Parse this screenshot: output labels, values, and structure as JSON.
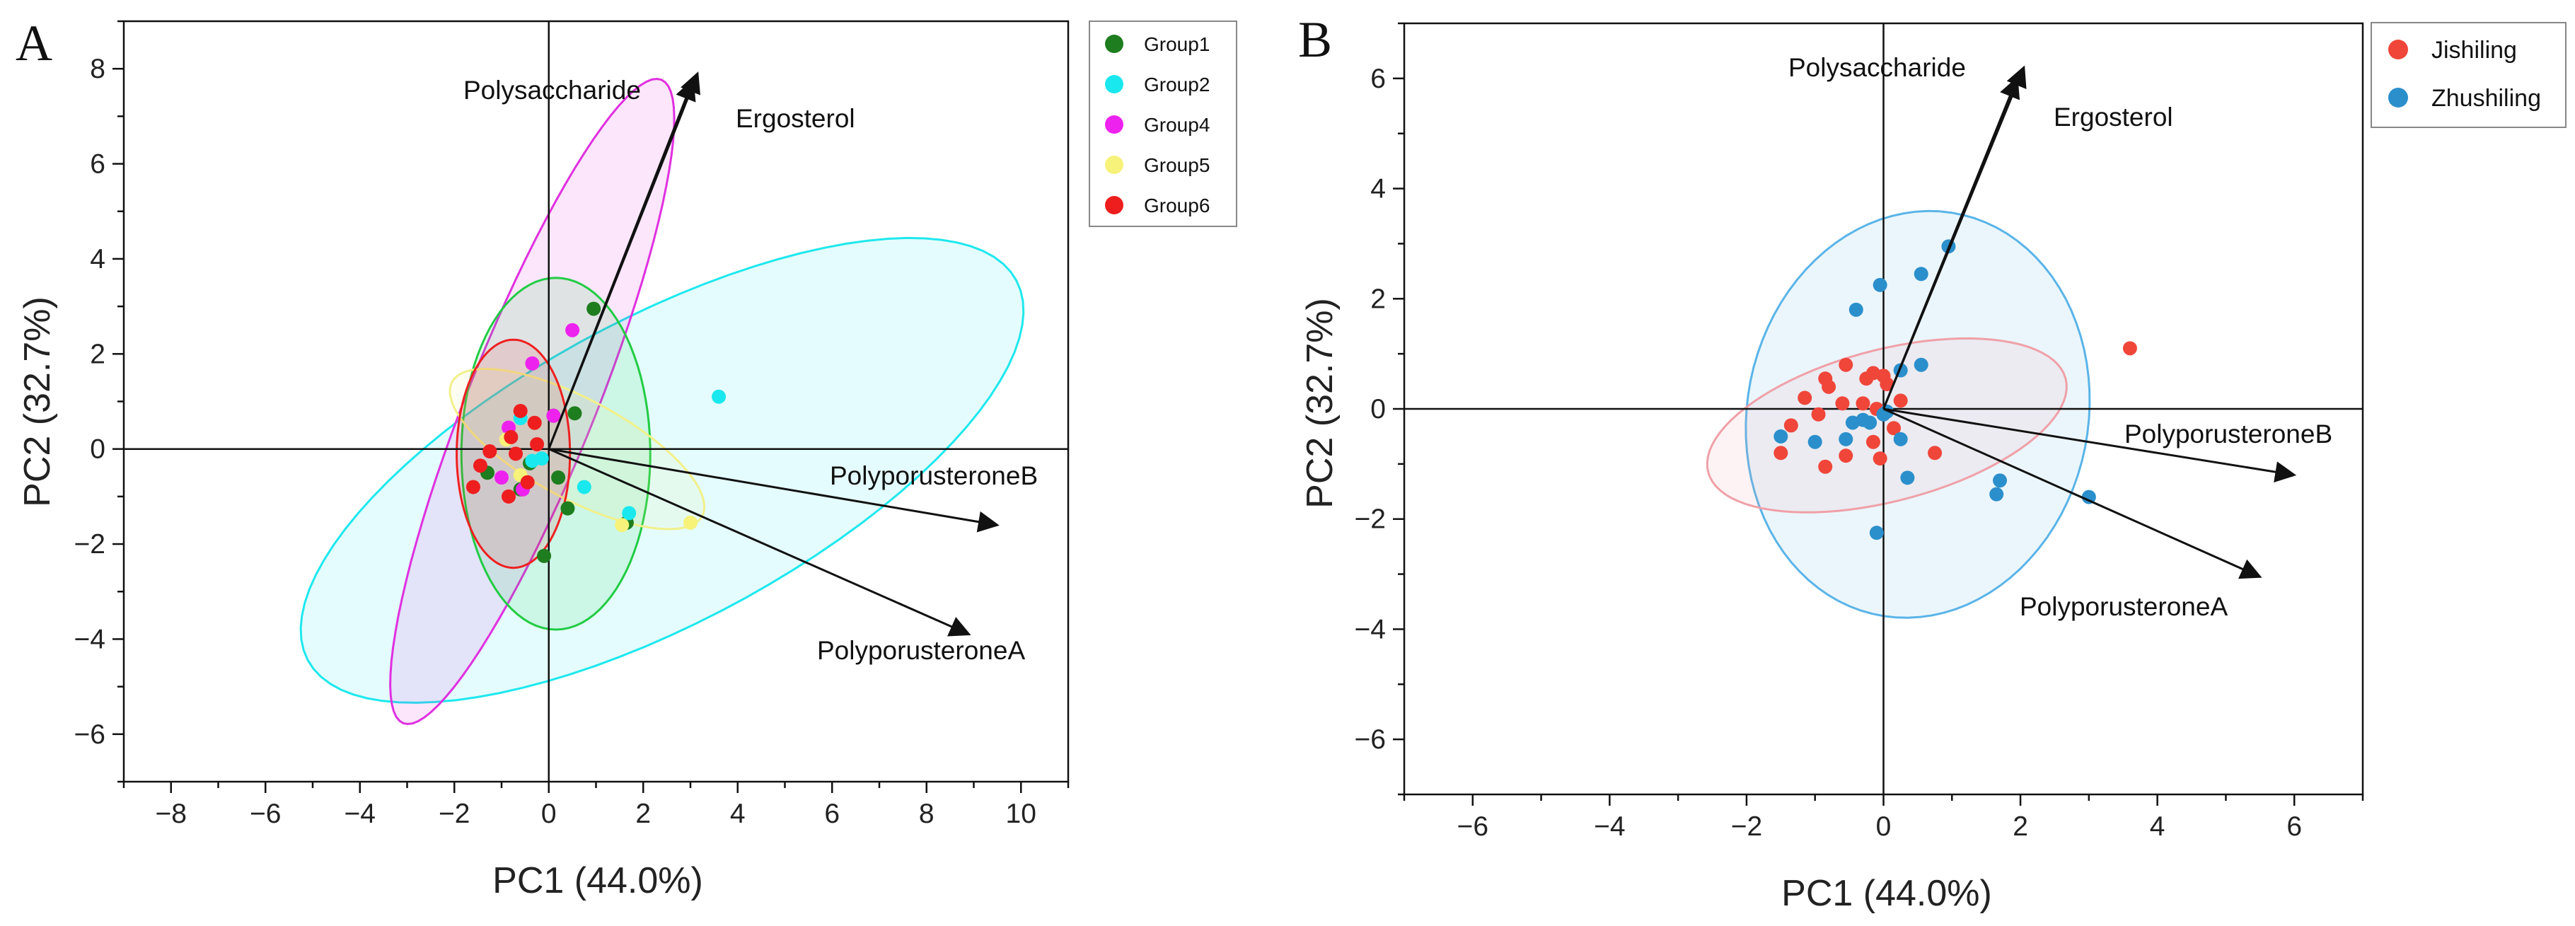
{
  "colors": {
    "Group1": "#1e7d1e",
    "Group2": "#19e8ee",
    "Group4": "#ee22ee",
    "Group5": "#f6f27a",
    "Group6": "#ee1e1e",
    "Jishiling": "#f0463a",
    "Zhushiling": "#2b8fcc",
    "ellipse_Group1": "#22cc44",
    "ellipse_Group2": "#1ee8ee",
    "ellipse_Group4": "#e030e0",
    "ellipse_Group5": "#f2f08a",
    "ellipse_Group6": "#ee2020",
    "ellipse_Jishiling": "#f0a0a8",
    "ellipse_Zhushiling": "#5ab4e8"
  },
  "chart_data": [
    {
      "panel": "A",
      "type": "scatter",
      "xlabel": "PC1 (44.0%)",
      "ylabel": "PC2 (32.7%)",
      "xlim": [
        -9,
        11
      ],
      "ylim": [
        -7,
        9
      ],
      "xticks": [
        -8,
        -6,
        -4,
        -2,
        0,
        2,
        4,
        6,
        8,
        10
      ],
      "yticks": [
        -6,
        -4,
        -2,
        0,
        2,
        4,
        6,
        8
      ],
      "legend_position": "top-right",
      "legend": [
        "Group1",
        "Group2",
        "Group4",
        "Group5",
        "Group6"
      ],
      "series": [
        {
          "name": "Group1",
          "points": [
            [
              0.95,
              2.95
            ],
            [
              0.55,
              0.75
            ],
            [
              0.2,
              -0.6
            ],
            [
              0.4,
              -1.25
            ],
            [
              1.65,
              -1.55
            ],
            [
              -0.1,
              -2.25
            ],
            [
              -0.6,
              -0.85
            ],
            [
              -0.4,
              -0.3
            ],
            [
              -1.3,
              -0.5
            ],
            [
              0.1,
              0.7
            ]
          ]
        },
        {
          "name": "Group2",
          "points": [
            [
              3.6,
              1.1
            ],
            [
              0.75,
              -0.8
            ],
            [
              1.7,
              -1.35
            ],
            [
              -0.35,
              -0.25
            ],
            [
              -0.15,
              -0.2
            ],
            [
              -0.6,
              0.65
            ]
          ]
        },
        {
          "name": "Group4",
          "points": [
            [
              0.5,
              2.5
            ],
            [
              -0.35,
              1.8
            ],
            [
              -0.85,
              0.45
            ],
            [
              -1.0,
              -0.6
            ],
            [
              -0.55,
              -0.85
            ],
            [
              0.1,
              0.7
            ]
          ]
        },
        {
          "name": "Group5",
          "points": [
            [
              3.0,
              -1.55
            ],
            [
              1.55,
              -1.6
            ],
            [
              -0.6,
              -0.55
            ],
            [
              -0.9,
              0.2
            ]
          ]
        },
        {
          "name": "Group6",
          "points": [
            [
              -0.6,
              0.8
            ],
            [
              -0.3,
              0.55
            ],
            [
              -0.8,
              0.25
            ],
            [
              -1.25,
              -0.05
            ],
            [
              -1.45,
              -0.35
            ],
            [
              -0.7,
              -0.1
            ],
            [
              -0.45,
              -0.7
            ],
            [
              -1.6,
              -0.8
            ],
            [
              -0.85,
              -1.0
            ],
            [
              -0.25,
              0.1
            ]
          ]
        }
      ],
      "ellipses": [
        {
          "name": "Group2",
          "cx": 2.4,
          "cy": -0.45,
          "rx": 8.5,
          "ry": 3.2,
          "angle_deg": 28
        },
        {
          "name": "Group4",
          "cx": -0.35,
          "cy": 1.0,
          "rx": 7.3,
          "ry": 1.35,
          "angle_deg": 68
        },
        {
          "name": "Group1",
          "cx": 0.15,
          "cy": -0.1,
          "rx": 3.7,
          "ry": 2.0,
          "angle_deg": 90
        },
        {
          "name": "Group5",
          "cx": 0.6,
          "cy": 0.0,
          "rx": 3.0,
          "ry": 1.05,
          "angle_deg": -28
        },
        {
          "name": "Group6",
          "cx": -0.75,
          "cy": -0.1,
          "rx": 2.4,
          "ry": 1.2,
          "angle_deg": 90
        }
      ],
      "loadings": [
        {
          "label": "Polysaccharide",
          "x": 3.15,
          "y": 7.9
        },
        {
          "label": "Ergosterol",
          "x": 3.05,
          "y": 7.75
        },
        {
          "label": "PolyporusteroneB",
          "x": 9.5,
          "y": -1.6
        },
        {
          "label": "PolyporusteroneA",
          "x": 8.9,
          "y": -3.9
        }
      ]
    },
    {
      "panel": "B",
      "type": "scatter",
      "xlabel": "PC1 (44.0%)",
      "ylabel": "PC2 (32.7%)",
      "xlim": [
        -7,
        7
      ],
      "ylim": [
        -7,
        7
      ],
      "xticks": [
        -6,
        -4,
        -2,
        0,
        2,
        4,
        6
      ],
      "yticks": [
        -6,
        -4,
        -2,
        0,
        2,
        4,
        6
      ],
      "legend_position": "top-right",
      "legend": [
        "Jishiling",
        "Zhushiling"
      ],
      "series": [
        {
          "name": "Jishiling",
          "points": [
            [
              3.6,
              1.1
            ],
            [
              -0.55,
              0.8
            ],
            [
              -0.85,
              0.55
            ],
            [
              -0.8,
              0.4
            ],
            [
              -0.25,
              0.55
            ],
            [
              -0.15,
              0.65
            ],
            [
              -1.15,
              0.2
            ],
            [
              -0.6,
              0.1
            ],
            [
              -0.3,
              0.1
            ],
            [
              -0.1,
              0.0
            ],
            [
              0.0,
              0.6
            ],
            [
              0.05,
              0.45
            ],
            [
              -1.35,
              -0.3
            ],
            [
              -0.95,
              -0.1
            ],
            [
              -1.5,
              -0.8
            ],
            [
              -0.85,
              -1.05
            ],
            [
              -0.55,
              -0.85
            ],
            [
              -0.05,
              -0.9
            ],
            [
              0.75,
              -0.8
            ],
            [
              -0.15,
              -0.6
            ],
            [
              0.15,
              -0.35
            ],
            [
              0.25,
              0.15
            ]
          ]
        },
        {
          "name": "Zhushiling",
          "points": [
            [
              0.95,
              2.95
            ],
            [
              0.55,
              2.45
            ],
            [
              -0.05,
              2.25
            ],
            [
              -0.4,
              1.8
            ],
            [
              0.55,
              0.8
            ],
            [
              0.25,
              0.7
            ],
            [
              -0.45,
              -0.25
            ],
            [
              -0.3,
              -0.2
            ],
            [
              -0.2,
              -0.25
            ],
            [
              0.0,
              -0.1
            ],
            [
              -1.0,
              -0.6
            ],
            [
              -1.5,
              -0.5
            ],
            [
              -0.55,
              -0.55
            ],
            [
              0.25,
              -0.55
            ],
            [
              0.35,
              -1.25
            ],
            [
              1.7,
              -1.3
            ],
            [
              1.65,
              -1.55
            ],
            [
              3.0,
              -1.6
            ],
            [
              -0.1,
              -2.25
            ],
            [
              0.05,
              -0.05
            ]
          ]
        }
      ],
      "ellipses": [
        {
          "name": "Zhushiling",
          "cx": 0.5,
          "cy": -0.1,
          "rx": 3.7,
          "ry": 2.5,
          "angle_deg": 85
        },
        {
          "name": "Jishiling",
          "cx": 0.05,
          "cy": -0.3,
          "rx": 2.75,
          "ry": 1.35,
          "angle_deg": 20
        }
      ],
      "loadings": [
        {
          "label": "Polysaccharide",
          "x": 2.05,
          "y": 6.2
        },
        {
          "label": "Ergosterol",
          "x": 1.95,
          "y": 6.0
        },
        {
          "label": "PolyporusteroneB",
          "x": 6.0,
          "y": -1.2
        },
        {
          "label": "PolyporusteroneA",
          "x": 5.5,
          "y": -3.05
        }
      ]
    }
  ],
  "panelA": {
    "letter": "A",
    "xlabel": "PC1 (44.0%)",
    "ylabel": "PC2 (32.7%)",
    "legend": {
      "g1": "Group1",
      "g2": "Group2",
      "g4": "Group4",
      "g5": "Group5",
      "g6": "Group6"
    },
    "vectors": {
      "poly": "Polysaccharide",
      "ergo": "Ergosterol",
      "pb": "PolyporusteroneB",
      "pa": "PolyporusteroneA"
    }
  },
  "panelB": {
    "letter": "B",
    "xlabel": "PC1 (44.0%)",
    "ylabel": "PC2 (32.7%)",
    "legend": {
      "j": "Jishiling",
      "z": "Zhushiling"
    },
    "vectors": {
      "poly": "Polysaccharide",
      "ergo": "Ergosterol",
      "pb": "PolyporusteroneB",
      "pa": "PolyporusteroneA"
    }
  }
}
